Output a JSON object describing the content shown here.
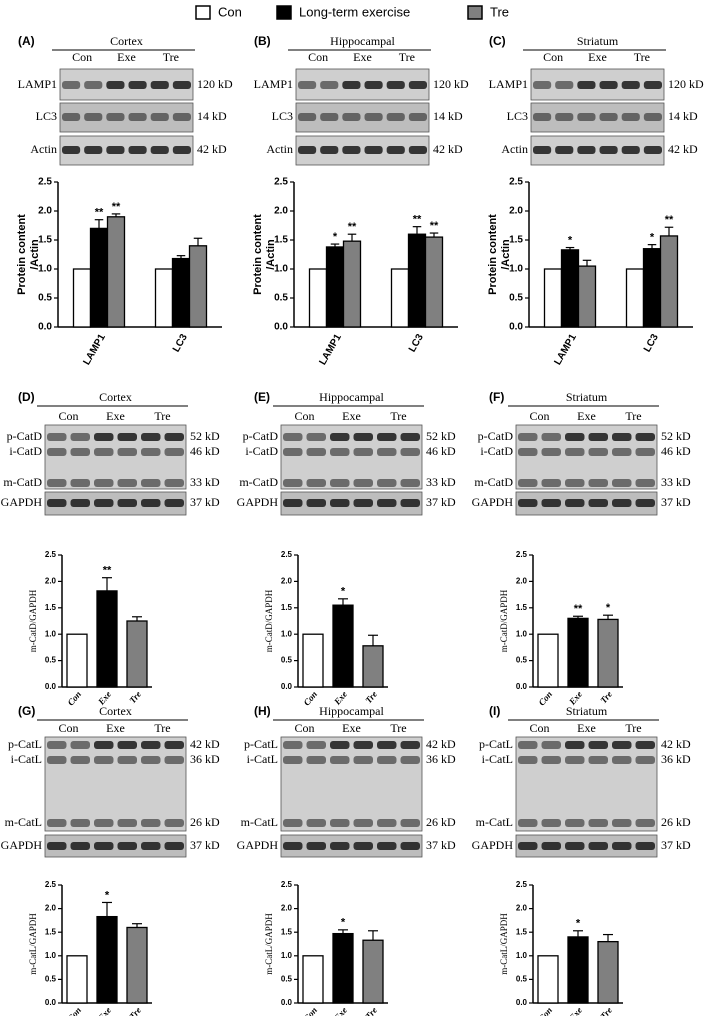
{
  "chart_data": [
    {
      "type": "grouped-bar",
      "panel": "(A)",
      "blot": {
        "region": "Cortex",
        "lanes": [
          "Con",
          "Exe",
          "Tre"
        ],
        "rows": [
          {
            "name": "LAMP1",
            "size": "120 kD"
          },
          {
            "name": "LC3",
            "size": "14 kD"
          },
          {
            "name": "Actin",
            "size": "42 kD"
          }
        ]
      },
      "ylabel": [
        "Protein content",
        "/Actin"
      ],
      "categories": [
        "LAMP1",
        "LC3"
      ],
      "series": [
        {
          "name": "Con",
          "color": "#ffffff",
          "values": [
            1,
            1
          ]
        },
        {
          "name": "Long-term exercise",
          "color": "#000000",
          "values": [
            1.7,
            1.18
          ],
          "errors": [
            0.15,
            0.05
          ],
          "sig": [
            "**",
            null
          ]
        },
        {
          "name": "Tre",
          "color": "#808080",
          "values": [
            1.9,
            1.4
          ],
          "errors": [
            0.05,
            0.13
          ],
          "sig": [
            "**",
            null
          ]
        }
      ],
      "ylim": [
        0,
        2.5
      ],
      "yticks": [
        {
          "value": 0,
          "label": "0.0"
        },
        0.5,
        {
          "value": 1,
          "label": "1.0"
        },
        1.5,
        {
          "value": 2,
          "label": "2.0"
        },
        2.5
      ]
    },
    {
      "type": "grouped-bar",
      "panel": "(B)",
      "blot": {
        "region": "Hippocampal",
        "lanes": [
          "Con",
          "Exe",
          "Tre"
        ],
        "rows": [
          {
            "name": "LAMP1",
            "size": "120 kD"
          },
          {
            "name": "LC3",
            "size": "14 kD"
          },
          {
            "name": "Actin",
            "size": "42 kD"
          }
        ]
      },
      "ylabel": [
        "Protein content",
        "/Actin"
      ],
      "categories": [
        "LAMP1",
        "LC3"
      ],
      "series": [
        {
          "color": "#ffffff",
          "values": [
            1,
            1
          ]
        },
        {
          "color": "#000000",
          "values": [
            1.38,
            1.6
          ],
          "errors": [
            0.05,
            0.13
          ],
          "sig": [
            "*",
            "**"
          ]
        },
        {
          "color": "#808080",
          "values": [
            1.48,
            1.55
          ],
          "errors": [
            0.12,
            0.07
          ],
          "sig": [
            "**",
            "**"
          ]
        }
      ],
      "ylim": [
        0,
        2.5
      ],
      "yticks": [
        {
          "value": 0,
          "label": "0.0"
        },
        0.5,
        {
          "value": 1,
          "label": "1.0"
        },
        1.5,
        {
          "value": 2,
          "label": "2.0"
        },
        2.5
      ]
    },
    {
      "type": "grouped-bar",
      "panel": "(C)",
      "blot": {
        "region": "Striatum",
        "lanes": [
          "Con",
          "Exe",
          "Tre"
        ],
        "rows": [
          {
            "name": "LAMP1",
            "size": "120 kD"
          },
          {
            "name": "LC3",
            "size": "14 kD"
          },
          {
            "name": "Actin",
            "size": "42 kD"
          }
        ]
      },
      "ylabel": [
        "Protein content",
        "/Actin"
      ],
      "categories": [
        "LAMP1",
        "LC3"
      ],
      "series": [
        {
          "color": "#ffffff",
          "values": [
            1,
            1
          ]
        },
        {
          "color": "#000000",
          "values": [
            1.33,
            1.35
          ],
          "errors": [
            0.04,
            0.07
          ],
          "sig": [
            "*",
            "*"
          ]
        },
        {
          "color": "#808080",
          "values": [
            1.05,
            1.57
          ],
          "errors": [
            0.1,
            0.15
          ],
          "sig": [
            null,
            "**"
          ]
        }
      ],
      "ylim": [
        0,
        2.5
      ],
      "yticks": [
        {
          "value": 0,
          "label": "0.0"
        },
        0.5,
        {
          "value": 1,
          "label": "1.0"
        },
        1.5,
        {
          "value": 2,
          "label": "2.0"
        },
        2.5
      ]
    },
    {
      "type": "bar",
      "panel": "(D)",
      "blot": {
        "region": "Cortex",
        "lanes": [
          "Con",
          "Exe",
          "Tre"
        ],
        "rows": [
          {
            "name": "p-CatD",
            "size": "52 kD"
          },
          {
            "name": "i-CatD",
            "size": "46 kD"
          },
          {
            "name": "m-CatD",
            "size": "33 kD"
          },
          {
            "name": "GAPDH",
            "size": "37 kD"
          }
        ]
      },
      "ylabel": "m-CatD/GAPDH",
      "categories": [
        "Con",
        "Exe",
        "Tre"
      ],
      "values": [
        1,
        1.82,
        1.25
      ],
      "errors": [
        null,
        0.25,
        0.08
      ],
      "sig": [
        null,
        "**",
        null
      ],
      "colors": [
        "#ffffff",
        "#000000",
        "#808080"
      ],
      "ylim": [
        0,
        2.5
      ],
      "yticks": [
        {
          "value": 0,
          "label": "0.0"
        },
        0.5,
        {
          "value": 1,
          "label": "1.0"
        },
        1.5,
        {
          "value": 2,
          "label": "2.0"
        },
        2.5
      ]
    },
    {
      "type": "bar",
      "panel": "(E)",
      "blot": {
        "region": "Hippocampal",
        "lanes": [
          "Con",
          "Exe",
          "Tre"
        ],
        "rows": [
          {
            "name": "p-CatD",
            "size": "52 kD"
          },
          {
            "name": "i-CatD",
            "size": "46 kD"
          },
          {
            "name": "m-CatD",
            "size": "33 kD"
          },
          {
            "name": "GAPDH",
            "size": "37 kD"
          }
        ]
      },
      "ylabel": "m-CatD/GAPDH",
      "categories": [
        "Con",
        "Exe",
        "Tre"
      ],
      "values": [
        1,
        1.55,
        0.78
      ],
      "errors": [
        null,
        0.12,
        0.2
      ],
      "sig": [
        null,
        "*",
        null
      ],
      "colors": [
        "#ffffff",
        "#000000",
        "#808080"
      ],
      "ylim": [
        0,
        2.5
      ],
      "yticks": [
        {
          "value": 0,
          "label": "0.0"
        },
        0.5,
        {
          "value": 1,
          "label": "1.0"
        },
        1.5,
        {
          "value": 2,
          "label": "2.0"
        },
        2.5
      ]
    },
    {
      "type": "bar",
      "panel": "(F)",
      "blot": {
        "region": "Striatum",
        "lanes": [
          "Con",
          "Exe",
          "Tre"
        ],
        "rows": [
          {
            "name": "p-CatD",
            "size": "52 kD"
          },
          {
            "name": "i-CatD",
            "size": "46 kD"
          },
          {
            "name": "m-CatD",
            "size": "33 kD"
          },
          {
            "name": "GAPDH",
            "size": "37 kD"
          }
        ]
      },
      "ylabel": "m-CatD/GAPDH",
      "categories": [
        "Con",
        "Exe",
        "Tre"
      ],
      "values": [
        1,
        1.3,
        1.28
      ],
      "errors": [
        null,
        0.04,
        0.08
      ],
      "sig": [
        null,
        "**",
        "*"
      ],
      "colors": [
        "#ffffff",
        "#000000",
        "#808080"
      ],
      "ylim": [
        0,
        2.5
      ],
      "yticks": [
        {
          "value": 0,
          "label": "0.0"
        },
        0.5,
        {
          "value": 1,
          "label": "1.0"
        },
        1.5,
        {
          "value": 2,
          "label": "2.0"
        },
        2.5
      ]
    },
    {
      "type": "bar",
      "panel": "(G)",
      "blot": {
        "region": "Cortex",
        "lanes": [
          "Con",
          "Exe",
          "Tre"
        ],
        "rows": [
          {
            "name": "p-CatL",
            "size": "42 kD"
          },
          {
            "name": "i-CatL",
            "size": "36 kD"
          },
          {
            "name": "m-CatL",
            "size": "26 kD"
          },
          {
            "name": "GAPDH",
            "size": "37 kD"
          }
        ]
      },
      "ylabel": "m-CatL/GAPDH",
      "categories": [
        "Con",
        "Exe",
        "Tre"
      ],
      "values": [
        1,
        1.83,
        1.6
      ],
      "errors": [
        null,
        0.3,
        0.08
      ],
      "sig": [
        null,
        "*",
        null
      ],
      "colors": [
        "#ffffff",
        "#000000",
        "#808080"
      ],
      "ylim": [
        0,
        2.5
      ],
      "yticks": [
        {
          "value": 0,
          "label": "0.0"
        },
        0.5,
        {
          "value": 1,
          "label": "1.0"
        },
        1.5,
        {
          "value": 2,
          "label": "2.0"
        },
        2.5
      ]
    },
    {
      "type": "bar",
      "panel": "(H)",
      "blot": {
        "region": "Hippocampal",
        "lanes": [
          "Con",
          "Exe",
          "Tre"
        ],
        "rows": [
          {
            "name": "p-CatL",
            "size": "42 kD"
          },
          {
            "name": "i-CatL",
            "size": "36 kD"
          },
          {
            "name": "m-CatL",
            "size": "26 kD"
          },
          {
            "name": "GAPDH",
            "size": "37 kD"
          }
        ]
      },
      "ylabel": "m-CatL/GAPDH",
      "categories": [
        "Con",
        "Exe",
        "Tre"
      ],
      "values": [
        1,
        1.47,
        1.33
      ],
      "errors": [
        null,
        0.08,
        0.2
      ],
      "sig": [
        null,
        "*",
        null
      ],
      "colors": [
        "#ffffff",
        "#000000",
        "#808080"
      ],
      "ylim": [
        0,
        2.5
      ],
      "yticks": [
        {
          "value": 0,
          "label": "0.0"
        },
        0.5,
        {
          "value": 1,
          "label": "1.0"
        },
        1.5,
        {
          "value": 2,
          "label": "2.0"
        },
        2.5
      ]
    },
    {
      "type": "bar",
      "panel": "(I)",
      "blot": {
        "region": "Striatum",
        "lanes": [
          "Con",
          "Exe",
          "Tre"
        ],
        "rows": [
          {
            "name": "p-CatL",
            "size": "42 kD"
          },
          {
            "name": "i-CatL",
            "size": "36 kD"
          },
          {
            "name": "m-CatL",
            "size": "26 kD"
          },
          {
            "name": "GAPDH",
            "size": "37 kD"
          }
        ]
      },
      "ylabel": "m-CatL/GAPDH",
      "categories": [
        "Con",
        "Exe",
        "Tre"
      ],
      "values": [
        1,
        1.4,
        1.3
      ],
      "errors": [
        null,
        0.13,
        0.15
      ],
      "sig": [
        null,
        "*",
        null
      ],
      "colors": [
        "#ffffff",
        "#000000",
        "#808080"
      ],
      "ylim": [
        0,
        2.5
      ],
      "yticks": [
        {
          "value": 0,
          "label": "0.0"
        },
        0.5,
        {
          "value": 1,
          "label": "1.0"
        },
        1.5,
        {
          "value": 2,
          "label": "2.0"
        },
        2.5
      ]
    }
  ]
}
